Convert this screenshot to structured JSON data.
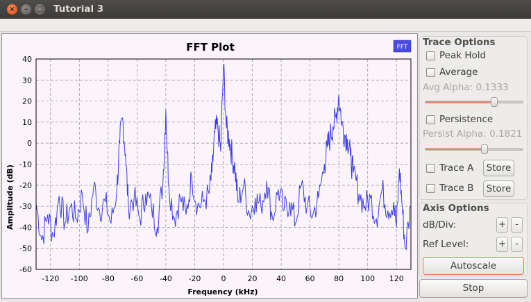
{
  "window": {
    "title": "Tutorial 3",
    "close_glyph": "×",
    "min_glyph": "–",
    "max_glyph": "□"
  },
  "plot": {
    "title": "FFT Plot",
    "legend": "FFT",
    "line_color": "#3c3ce6",
    "legend_color": "#4a4ae6"
  },
  "trace_options": {
    "title": "Trace Options",
    "peak_hold": "Peak Hold",
    "average": "Average",
    "avg_alpha": "Avg Alpha: 0.1333",
    "avg_alpha_value": 0.71,
    "persistence": "Persistence",
    "persist_alpha": "Persist Alpha: 0.1821",
    "persist_alpha_value": 0.61,
    "trace_a": "Trace A",
    "trace_b": "Trace B",
    "store": "Store"
  },
  "axis_options": {
    "title": "Axis Options",
    "db_div": "dB/Div:",
    "ref_level": "Ref Level:",
    "plus": "+",
    "minus": "-",
    "autoscale": "Autoscale"
  },
  "stop_label": "Stop",
  "chart_data": {
    "type": "line",
    "title": "FFT Plot",
    "xlabel": "Frequency (kHz)",
    "ylabel": "Amplitude (dB)",
    "xlim": [
      -130,
      130
    ],
    "ylim": [
      -60,
      40
    ],
    "xticks": [
      -120,
      -100,
      -80,
      -60,
      -40,
      -20,
      0,
      20,
      40,
      60,
      80,
      100,
      120
    ],
    "yticks": [
      40,
      30,
      20,
      10,
      0,
      -10,
      -20,
      -30,
      -40,
      -50,
      -60
    ],
    "grid": true,
    "legend_position": "top-right",
    "series": [
      {
        "name": "FFT",
        "x": [
          -130,
          -126,
          -122,
          -118,
          -114,
          -110,
          -106,
          -102,
          -98,
          -94,
          -90,
          -86,
          -82,
          -78,
          -74,
          -72,
          -70,
          -68,
          -66,
          -62,
          -58,
          -54,
          -50,
          -46,
          -42,
          -40,
          -38,
          -34,
          -30,
          -26,
          -22,
          -18,
          -14,
          -10,
          -8,
          -6,
          -4,
          -2,
          0,
          2,
          4,
          6,
          8,
          10,
          14,
          18,
          22,
          26,
          30,
          34,
          38,
          42,
          46,
          50,
          54,
          58,
          62,
          66,
          70,
          72,
          74,
          76,
          78,
          80,
          82,
          84,
          86,
          88,
          90,
          94,
          98,
          102,
          106,
          110,
          114,
          118,
          120,
          122,
          124,
          126,
          130
        ],
        "y": [
          -29,
          -46,
          -34,
          -44,
          -25,
          -38,
          -30,
          -36,
          -24,
          -42,
          -20,
          -32,
          -28,
          -38,
          -22,
          0,
          12,
          -5,
          -30,
          -26,
          -36,
          -24,
          -30,
          -40,
          -18,
          16,
          -20,
          -36,
          -26,
          -34,
          -16,
          -30,
          -28,
          -24,
          -14,
          5,
          8,
          -4,
          37,
          7,
          2,
          -6,
          -12,
          -28,
          -20,
          -34,
          -26,
          -30,
          -18,
          -36,
          -22,
          -32,
          -28,
          -38,
          -20,
          -30,
          -34,
          -26,
          -10,
          -2,
          3,
          8,
          12,
          23,
          10,
          4,
          2,
          -6,
          -14,
          -24,
          -30,
          -26,
          -36,
          -22,
          -32,
          -28,
          -40,
          -12,
          -30,
          -50,
          -30
        ]
      }
    ]
  }
}
